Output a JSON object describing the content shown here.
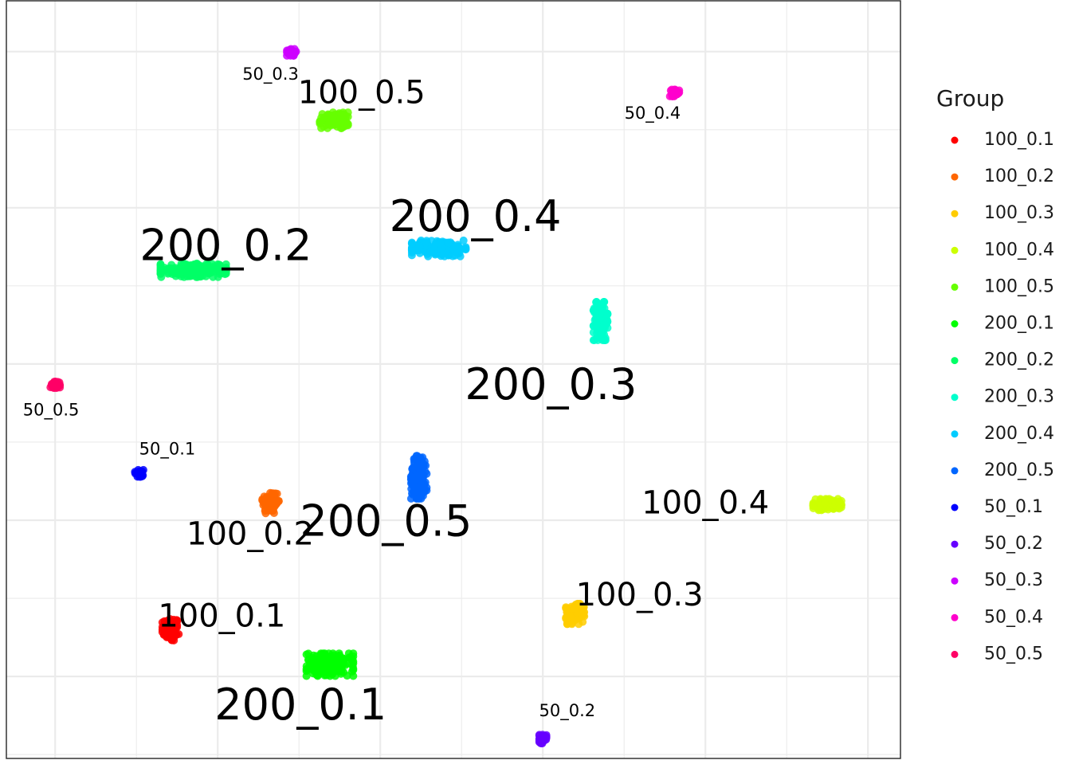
{
  "chart_data": {
    "type": "scatter",
    "title": "",
    "xlabel": "",
    "ylabel": "",
    "xlim": [
      -4.6,
      6.4
    ],
    "ylim": [
      -4.55,
      5.15
    ],
    "x_gridlines": [
      -4,
      -3,
      -2,
      -1,
      0,
      1,
      2,
      3,
      4,
      5,
      6
    ],
    "y_gridlines": [
      -4.5,
      -3.5,
      -2.5,
      -1.5,
      -0.5,
      0.5,
      1.5,
      2.5,
      3.5,
      4.5
    ],
    "grid": true,
    "panel_border": true,
    "axis_ticks_shown": false,
    "legend": {
      "title": "Group",
      "position": "right"
    },
    "series": [
      {
        "name": "100_0.1",
        "color": "#FF0000",
        "label": "100_0.1",
        "label_size": "medium",
        "cluster": {
          "x": -2.58,
          "y": -2.9,
          "sx": 0.07,
          "sy": 0.1,
          "n": 90
        },
        "label_pos": {
          "x": -1.95,
          "y": -2.75
        }
      },
      {
        "name": "100_0.2",
        "color": "#FF6600",
        "label": "100_0.2",
        "label_size": "medium",
        "cluster": {
          "x": -1.35,
          "y": -1.27,
          "sx": 0.07,
          "sy": 0.1,
          "n": 80
        },
        "label_pos": {
          "x": -1.6,
          "y": -1.7
        }
      },
      {
        "name": "100_0.3",
        "color": "#FFCC00",
        "label": "100_0.3",
        "label_size": "medium",
        "cluster": {
          "x": 2.4,
          "y": -2.7,
          "sx": 0.08,
          "sy": 0.09,
          "n": 80
        },
        "label_pos": {
          "x": 3.19,
          "y": -2.48
        }
      },
      {
        "name": "100_0.4",
        "color": "#CCFF00",
        "label": "100_0.4",
        "label_size": "medium",
        "cluster": {
          "x": 5.5,
          "y": -1.3,
          "sx": 0.12,
          "sy": 0.05,
          "n": 90
        },
        "label_pos": {
          "x": 4.0,
          "y": -1.3
        }
      },
      {
        "name": "100_0.5",
        "color": "#66FF00",
        "label": "100_0.5",
        "label_size": "medium",
        "cluster": {
          "x": -0.57,
          "y": 3.62,
          "sx": 0.12,
          "sy": 0.07,
          "n": 90
        },
        "label_pos": {
          "x": -0.23,
          "y": 3.95
        }
      },
      {
        "name": "200_0.1",
        "color": "#00FF00",
        "label": "200_0.1",
        "label_size": "large",
        "cluster": {
          "x": -0.62,
          "y": -3.35,
          "sx": 0.2,
          "sy": 0.1,
          "n": 150
        },
        "label_pos": {
          "x": -0.98,
          "y": -3.9
        }
      },
      {
        "name": "200_0.2",
        "color": "#00FF66",
        "label": "200_0.2",
        "label_size": "large",
        "cluster": {
          "x": -2.3,
          "y": 1.7,
          "sx": 0.28,
          "sy": 0.06,
          "n": 170
        },
        "label_pos": {
          "x": -1.9,
          "y": 1.98
        }
      },
      {
        "name": "200_0.3",
        "color": "#00FFCC",
        "label": "200_0.3",
        "label_size": "large",
        "cluster": {
          "x": 2.71,
          "y": 1.05,
          "sx": 0.06,
          "sy": 0.17,
          "n": 130
        },
        "label_pos": {
          "x": 2.1,
          "y": 0.2
        }
      },
      {
        "name": "200_0.4",
        "color": "#00CCFF",
        "label": "200_0.4",
        "label_size": "large",
        "cluster": {
          "x": 0.72,
          "y": 1.98,
          "sx": 0.23,
          "sy": 0.07,
          "n": 160
        },
        "label_pos": {
          "x": 1.17,
          "y": 2.35
        }
      },
      {
        "name": "200_0.5",
        "color": "#0066FF",
        "label": "200_0.5",
        "label_size": "large",
        "cluster": {
          "x": 0.48,
          "y": -0.95,
          "sx": 0.07,
          "sy": 0.19,
          "n": 140
        },
        "label_pos": {
          "x": 0.07,
          "y": -1.55
        }
      },
      {
        "name": "50_0.1",
        "color": "#0000FF",
        "label": "50_0.1",
        "label_size": "small",
        "cluster": {
          "x": -2.96,
          "y": -0.9,
          "sx": 0.04,
          "sy": 0.03,
          "n": 40
        },
        "label_pos": {
          "x": -2.62,
          "y": -0.6
        }
      },
      {
        "name": "50_0.2",
        "color": "#6600FF",
        "label": "50_0.2",
        "label_size": "small",
        "cluster": {
          "x": 2.0,
          "y": -4.3,
          "sx": 0.03,
          "sy": 0.04,
          "n": 40
        },
        "label_pos": {
          "x": 2.3,
          "y": -3.95
        }
      },
      {
        "name": "50_0.3",
        "color": "#CC00FF",
        "label": "50_0.3",
        "label_size": "small",
        "cluster": {
          "x": -1.09,
          "y": 4.49,
          "sx": 0.04,
          "sy": 0.03,
          "n": 40
        },
        "label_pos": {
          "x": -1.35,
          "y": 4.2
        }
      },
      {
        "name": "50_0.4",
        "color": "#FF00CC",
        "label": "50_0.4",
        "label_size": "small",
        "cluster": {
          "x": 3.62,
          "y": 3.97,
          "sx": 0.04,
          "sy": 0.03,
          "n": 40
        },
        "label_pos": {
          "x": 3.35,
          "y": 3.7
        }
      },
      {
        "name": "50_0.5",
        "color": "#FF0066",
        "label": "50_0.5",
        "label_size": "small",
        "cluster": {
          "x": -4.0,
          "y": 0.23,
          "sx": 0.04,
          "sy": 0.03,
          "n": 40
        },
        "label_pos": {
          "x": -4.05,
          "y": -0.1
        }
      }
    ]
  }
}
